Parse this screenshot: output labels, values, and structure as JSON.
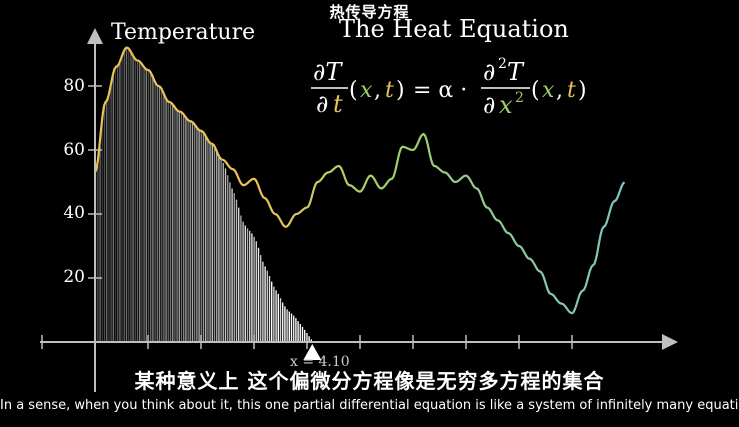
{
  "top_title": "热传导方程",
  "equation_title": "The Heat Equation",
  "y_axis_label": "Temperature",
  "y_ticks": [
    "80",
    "60",
    "40",
    "20"
  ],
  "y_tick_values": [
    80,
    60,
    40,
    20
  ],
  "equation": {
    "lhs_num": "∂T",
    "lhs_den_d": "∂",
    "lhs_den_t": "t",
    "args_left": "(",
    "arg_x": "x",
    "comma": ",",
    "arg_t": "t",
    "args_right": ")",
    "equals": "= α ·",
    "rhs_num": "∂",
    "rhs_num_sup": "2",
    "rhs_num_T": "T",
    "rhs_den_d": "∂",
    "rhs_den_x": "x",
    "rhs_den_sup": "2",
    "args2_left": "(",
    "arg2_x": "x",
    "comma2": ",",
    "arg2_t": "t",
    "args2_right": ")"
  },
  "marker_readout": "x = 4.10",
  "subtitle_zh": "某种意义上  这个偏微分方程像是无穷多方程的集合",
  "subtitle_en": "In a sense, when you think about it, this one partial differential equation is like a system of infinitely many equations,",
  "colors": {
    "background": "#000000",
    "axis": "#bfbfbf",
    "curve_warm": "#e8c35a",
    "curve_mid": "#9fcf6a",
    "curve_cool": "#7fc4c4",
    "t_accent": "#e8c35a",
    "x_accent": "#9fcf6a"
  },
  "chart_data": {
    "type": "line",
    "ylabel": "Temperature",
    "ylim": [
      0,
      95
    ],
    "xlim": [
      0,
      10
    ],
    "x": [
      0.0,
      0.2,
      0.4,
      0.6,
      0.8,
      1.0,
      1.2,
      1.4,
      1.6,
      1.8,
      2.0,
      2.2,
      2.4,
      2.6,
      2.8,
      3.0,
      3.2,
      3.4,
      3.6,
      3.8,
      4.0,
      4.2,
      4.4,
      4.6,
      4.8,
      5.0,
      5.2,
      5.4,
      5.6,
      5.8,
      6.0,
      6.2,
      6.4,
      6.6,
      6.8,
      7.0,
      7.2,
      7.4,
      7.6,
      7.8,
      8.0,
      8.2,
      8.4,
      8.6,
      8.8,
      9.0,
      9.2,
      9.4,
      9.6,
      9.8,
      10.0
    ],
    "values": [
      53,
      75,
      86,
      92,
      88,
      85,
      80,
      75,
      72,
      69,
      66,
      62,
      57,
      54,
      49,
      51,
      45,
      40,
      36,
      40,
      42,
      50,
      53,
      55,
      49,
      47,
      52,
      48,
      51,
      61,
      60,
      65,
      55,
      53,
      50,
      52,
      48,
      42,
      38,
      34,
      30,
      26,
      22,
      15,
      12,
      9,
      16,
      24,
      36,
      44,
      50
    ],
    "shaded_until_x": 4.1
  }
}
